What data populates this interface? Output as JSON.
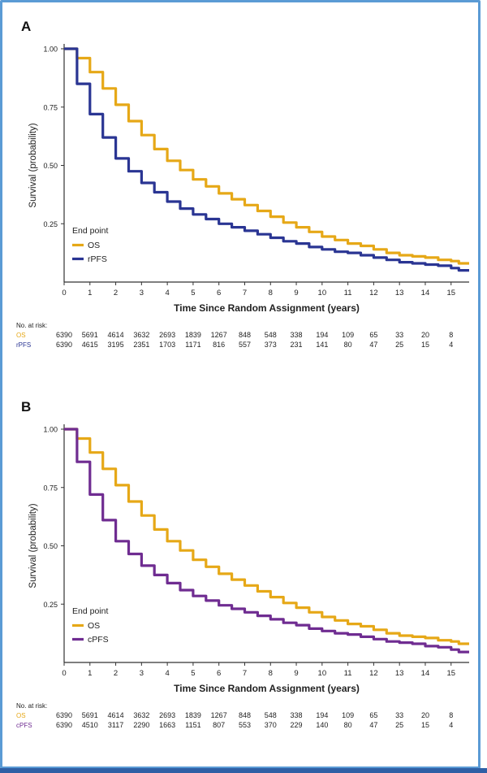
{
  "colors": {
    "os": "#e6a817",
    "rpfs": "#2a3593",
    "cpfs": "#6f2c91",
    "frame": "#5b9bd5"
  },
  "chart_data": [
    {
      "panel": "A",
      "type": "line",
      "ylabel": "Survival (probability)",
      "xlabel": "Time Since Random Assignment (years)",
      "xlim": [
        0,
        15.7
      ],
      "ylim": [
        0,
        1.0
      ],
      "xticks": [
        "0",
        "1",
        "2",
        "3",
        "4",
        "5",
        "6",
        "7",
        "8",
        "9",
        "10",
        "11",
        "12",
        "13",
        "14",
        "15"
      ],
      "yticks": [
        "1.00",
        "0.75",
        "0.50",
        "0.25"
      ],
      "legend_title": "End point",
      "legend_placement": "bottom-left",
      "series": [
        {
          "name": "OS",
          "color": "#e6a817",
          "x": [
            0,
            0.5,
            1,
            1.5,
            2,
            2.5,
            3,
            3.5,
            4,
            4.5,
            5,
            5.5,
            6,
            6.5,
            7,
            7.5,
            8,
            8.5,
            9,
            9.5,
            10,
            10.5,
            11,
            11.5,
            12,
            12.5,
            13,
            13.5,
            14,
            14.5,
            15,
            15.3,
            15.7
          ],
          "y": [
            1.0,
            0.96,
            0.9,
            0.83,
            0.76,
            0.69,
            0.63,
            0.57,
            0.52,
            0.48,
            0.44,
            0.41,
            0.38,
            0.355,
            0.33,
            0.305,
            0.28,
            0.255,
            0.235,
            0.215,
            0.195,
            0.18,
            0.165,
            0.155,
            0.14,
            0.125,
            0.115,
            0.11,
            0.105,
            0.095,
            0.09,
            0.08,
            0.08
          ]
        },
        {
          "name": "rPFS",
          "color": "#2a3593",
          "x": [
            0,
            0.5,
            1,
            1.5,
            2,
            2.5,
            3,
            3.5,
            4,
            4.5,
            5,
            5.5,
            6,
            6.5,
            7,
            7.5,
            8,
            8.5,
            9,
            9.5,
            10,
            10.5,
            11,
            11.5,
            12,
            12.5,
            13,
            13.5,
            14,
            14.5,
            15,
            15.3,
            15.7
          ],
          "y": [
            1.0,
            0.85,
            0.72,
            0.62,
            0.53,
            0.475,
            0.425,
            0.385,
            0.345,
            0.315,
            0.29,
            0.27,
            0.25,
            0.235,
            0.22,
            0.205,
            0.19,
            0.175,
            0.165,
            0.15,
            0.14,
            0.13,
            0.125,
            0.115,
            0.105,
            0.095,
            0.085,
            0.08,
            0.075,
            0.07,
            0.06,
            0.05,
            0.05
          ]
        }
      ],
      "at_risk_title": "No. at risk:",
      "at_risk": [
        {
          "label": "OS",
          "values": [
            "6390",
            "5691",
            "4614",
            "3632",
            "2693",
            "1839",
            "1267",
            "848",
            "548",
            "338",
            "194",
            "109",
            "65",
            "33",
            "20",
            "8"
          ]
        },
        {
          "label": "rPFS",
          "values": [
            "6390",
            "4615",
            "3195",
            "2351",
            "1703",
            "1171",
            "816",
            "557",
            "373",
            "231",
            "141",
            "80",
            "47",
            "25",
            "15",
            "4"
          ]
        }
      ]
    },
    {
      "panel": "B",
      "type": "line",
      "ylabel": "Survival (probability)",
      "xlabel": "Time Since Random Assignment (years)",
      "xlim": [
        0,
        15.7
      ],
      "ylim": [
        0,
        1.0
      ],
      "xticks": [
        "0",
        "1",
        "2",
        "3",
        "4",
        "5",
        "6",
        "7",
        "8",
        "9",
        "10",
        "11",
        "12",
        "13",
        "14",
        "15"
      ],
      "yticks": [
        "1.00",
        "0.75",
        "0.50",
        "0.25"
      ],
      "legend_title": "End point",
      "legend_placement": "bottom-left",
      "series": [
        {
          "name": "OS",
          "color": "#e6a817",
          "x": [
            0,
            0.5,
            1,
            1.5,
            2,
            2.5,
            3,
            3.5,
            4,
            4.5,
            5,
            5.5,
            6,
            6.5,
            7,
            7.5,
            8,
            8.5,
            9,
            9.5,
            10,
            10.5,
            11,
            11.5,
            12,
            12.5,
            13,
            13.5,
            14,
            14.5,
            15,
            15.3,
            15.7
          ],
          "y": [
            1.0,
            0.96,
            0.9,
            0.83,
            0.76,
            0.69,
            0.63,
            0.57,
            0.52,
            0.48,
            0.44,
            0.41,
            0.38,
            0.355,
            0.33,
            0.305,
            0.28,
            0.255,
            0.235,
            0.215,
            0.195,
            0.18,
            0.165,
            0.155,
            0.14,
            0.125,
            0.115,
            0.11,
            0.105,
            0.095,
            0.09,
            0.08,
            0.08
          ]
        },
        {
          "name": "cPFS",
          "color": "#6f2c91",
          "x": [
            0,
            0.5,
            1,
            1.5,
            2,
            2.5,
            3,
            3.5,
            4,
            4.5,
            5,
            5.5,
            6,
            6.5,
            7,
            7.5,
            8,
            8.5,
            9,
            9.5,
            10,
            10.5,
            11,
            11.5,
            12,
            12.5,
            13,
            13.5,
            14,
            14.5,
            15,
            15.3,
            15.7
          ],
          "y": [
            1.0,
            0.86,
            0.72,
            0.61,
            0.52,
            0.465,
            0.415,
            0.375,
            0.34,
            0.31,
            0.285,
            0.265,
            0.245,
            0.23,
            0.215,
            0.2,
            0.185,
            0.17,
            0.16,
            0.145,
            0.135,
            0.125,
            0.12,
            0.11,
            0.1,
            0.09,
            0.085,
            0.08,
            0.07,
            0.065,
            0.055,
            0.045,
            0.045
          ]
        }
      ],
      "at_risk_title": "No. at risk:",
      "at_risk": [
        {
          "label": "OS",
          "values": [
            "6390",
            "5691",
            "4614",
            "3632",
            "2693",
            "1839",
            "1267",
            "848",
            "548",
            "338",
            "194",
            "109",
            "65",
            "33",
            "20",
            "8"
          ]
        },
        {
          "label": "cPFS",
          "values": [
            "6390",
            "4510",
            "3117",
            "2290",
            "1663",
            "1151",
            "807",
            "553",
            "370",
            "229",
            "140",
            "80",
            "47",
            "25",
            "15",
            "4"
          ]
        }
      ]
    }
  ]
}
